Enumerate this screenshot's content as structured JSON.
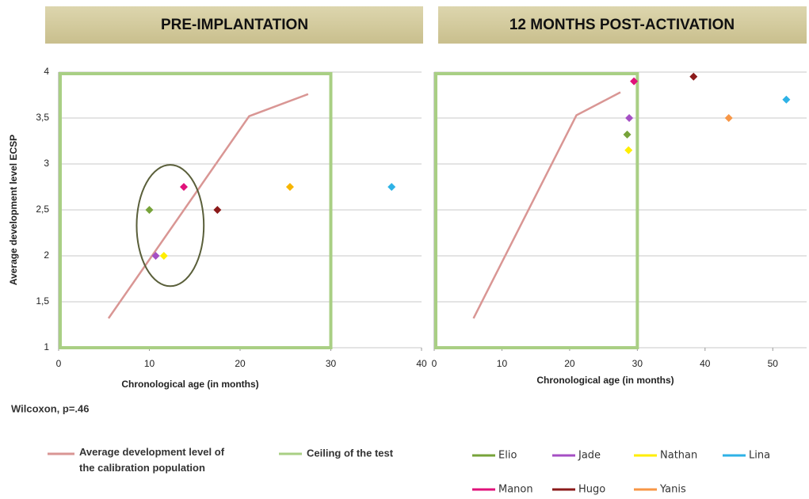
{
  "note": "Wilcoxon, p=.46",
  "chart_data": [
    {
      "type": "scatter",
      "title": "PRE-IMPLANTATION",
      "y_label": "Average development level ECSP",
      "x_label": "Chronological age (in months)",
      "xlim": [
        0,
        40
      ],
      "xticks": [
        0,
        10,
        20,
        30,
        40
      ],
      "ylim": [
        1,
        4
      ],
      "yticks": [
        1,
        {
          "value": 1.5,
          "label": "1,5"
        },
        2,
        {
          "value": 2.5,
          "label": "2,5"
        },
        3,
        {
          "value": 3.5,
          "label": "3,5"
        },
        4
      ],
      "grid": true,
      "calibration": {
        "name": "Average development  level of the calibration population",
        "color": "#d99694",
        "x": [
          5.5,
          21,
          27.5
        ],
        "values": [
          1.32,
          3.52,
          3.76
        ]
      },
      "ceiling": {
        "name": "Ceiling of the test",
        "color": "#a9cf84",
        "x": 30,
        "y": 4
      },
      "highlight": {
        "x": 12.3,
        "y": 2.33,
        "rx": 3.7,
        "ry": 0.66,
        "color": "#5a5f3a"
      },
      "series": [
        {
          "name": "Elio",
          "color": "#77a33a",
          "x": [
            10
          ],
          "values": [
            2.5
          ]
        },
        {
          "name": "Jade",
          "color": "#a54fc4",
          "x": [
            10.7
          ],
          "values": [
            2
          ]
        },
        {
          "name": "Nathan",
          "color": "#ffee00",
          "x": [
            11.6
          ],
          "values": [
            2
          ]
        },
        {
          "name": "Lina",
          "color": "#2eb2e6",
          "x": [
            36.7
          ],
          "values": [
            2.75
          ]
        },
        {
          "name": "Manon",
          "color": "#e0127a",
          "x": [
            13.8
          ],
          "values": [
            2.75
          ]
        },
        {
          "name": "Hugo",
          "color": "#8b1a1a",
          "x": [
            17.5
          ],
          "values": [
            2.5
          ]
        },
        {
          "name": "Yanis",
          "color": "#f7b500",
          "x": [
            25.5
          ],
          "values": [
            2.75
          ]
        }
      ]
    },
    {
      "type": "scatter",
      "title": "12 MONTHS POST-ACTIVATION",
      "x_label": "Chronological age (in months)",
      "xlim": [
        0,
        55
      ],
      "xticks": [
        0,
        10,
        20,
        30,
        40,
        50
      ],
      "ylim": [
        1,
        4
      ],
      "yticks": [
        1,
        1.5,
        2,
        2.5,
        3,
        3.5,
        4
      ],
      "grid": true,
      "calibration": {
        "color": "#d99694",
        "x": [
          5.8,
          21,
          27.5
        ],
        "values": [
          1.32,
          3.53,
          3.78
        ]
      },
      "ceiling": {
        "color": "#a9cf84",
        "x": 30,
        "y": 4
      },
      "series": [
        {
          "name": "Elio",
          "color": "#77a33a",
          "x": [
            28.5
          ],
          "values": [
            3.32
          ]
        },
        {
          "name": "Jade",
          "color": "#a54fc4",
          "x": [
            28.8
          ],
          "values": [
            3.5
          ]
        },
        {
          "name": "Nathan",
          "color": "#ffee00",
          "x": [
            28.7
          ],
          "values": [
            3.15
          ]
        },
        {
          "name": "Lina",
          "color": "#2eb2e6",
          "x": [
            52
          ],
          "values": [
            3.7
          ]
        },
        {
          "name": "Manon",
          "color": "#e0127a",
          "x": [
            29.5
          ],
          "values": [
            3.9
          ]
        },
        {
          "name": "Hugo",
          "color": "#8b1a1a",
          "x": [
            38.3
          ],
          "values": [
            3.95
          ]
        },
        {
          "name": "Yanis",
          "color": "#f79646",
          "x": [
            43.5
          ],
          "values": [
            3.5
          ]
        }
      ]
    }
  ]
}
